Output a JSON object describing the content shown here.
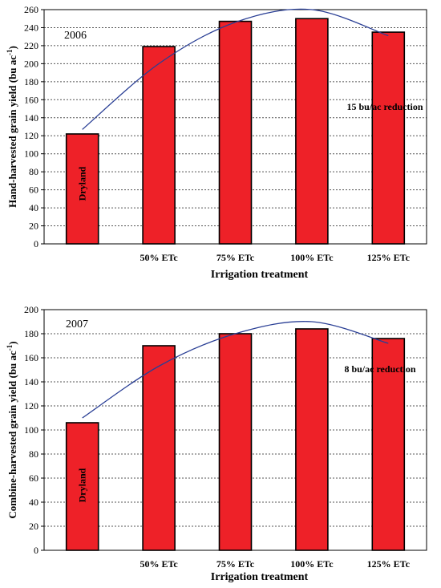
{
  "chart_data": [
    {
      "type": "bar",
      "year_label": "2006",
      "categories": [
        "",
        "50% ETc",
        "75% ETc",
        "100% ETc",
        "125% ETc"
      ],
      "values": [
        122,
        219,
        247,
        250,
        235
      ],
      "bar_inner_label": "Dryland",
      "annotation": "15 bu/ac reduction",
      "xlabel": "Irrigation treatment",
      "ylabel_main": "Hand-harvested grain yield (bu ac",
      "ylabel_sup": "-1",
      "ylabel_tail": ")",
      "ylim": [
        0,
        260
      ],
      "yticks": [
        0,
        20,
        40,
        60,
        80,
        100,
        120,
        140,
        160,
        180,
        200,
        220,
        240,
        260
      ],
      "trendline": [
        127,
        200,
        246,
        260,
        231
      ],
      "grid": true,
      "bar_color": "#ee2128",
      "trend_color": "#2a3f95"
    },
    {
      "type": "bar",
      "year_label": "2007",
      "categories": [
        "",
        "50% ETc",
        "75% ETc",
        "100% ETc",
        "125% ETc"
      ],
      "values": [
        106,
        170,
        180,
        184,
        176
      ],
      "bar_inner_label": "Dryland",
      "annotation": "8 bu/ac reduction",
      "xlabel": "Irrigation treatment",
      "ylabel_main": "Combine-harvested grain yield (bu ac",
      "ylabel_sup": "-1",
      "ylabel_tail": ")",
      "ylim": [
        0,
        200
      ],
      "yticks": [
        0,
        20,
        40,
        60,
        80,
        100,
        120,
        140,
        160,
        180,
        200
      ],
      "trendline": [
        110,
        153,
        180,
        190,
        172
      ],
      "grid": true,
      "bar_color": "#ee2128",
      "trend_color": "#2a3f95"
    }
  ]
}
